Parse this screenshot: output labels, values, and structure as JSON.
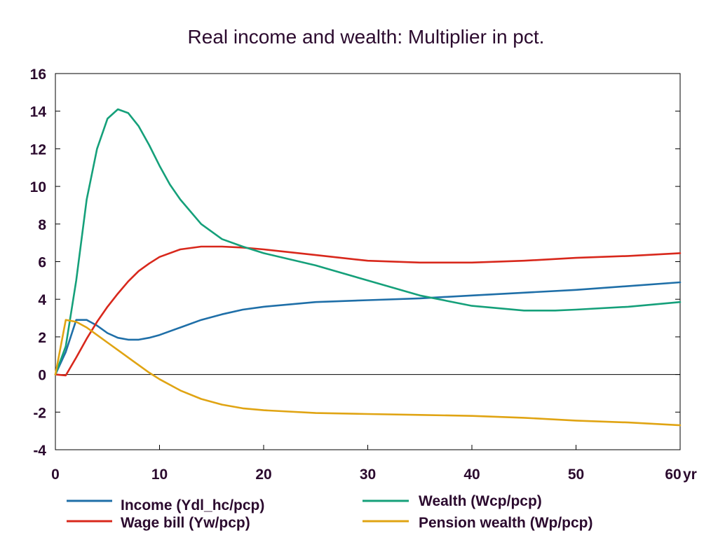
{
  "chart_data": {
    "type": "line",
    "title": "Real income and wealth: Multiplier in pct.",
    "xlabel": "",
    "ylabel": "",
    "x_unit_label": "yr",
    "xlim": [
      0,
      60
    ],
    "ylim": [
      -4,
      16
    ],
    "x_ticks": [
      0,
      10,
      20,
      30,
      40,
      50,
      60
    ],
    "y_ticks": [
      -4,
      -2,
      0,
      2,
      4,
      6,
      8,
      10,
      12,
      14,
      16
    ],
    "grid": false,
    "zero_line": true,
    "legend_position": "bottom",
    "series": [
      {
        "name": "Income (Ydl_hc/pcp)",
        "color": "#1f6fa8",
        "x": [
          0,
          1,
          2,
          3,
          4,
          5,
          6,
          7,
          8,
          9,
          10,
          12,
          14,
          16,
          18,
          20,
          25,
          30,
          35,
          40,
          45,
          50,
          55,
          60
        ],
        "y": [
          0,
          1.2,
          2.9,
          2.9,
          2.6,
          2.2,
          1.95,
          1.85,
          1.85,
          1.95,
          2.1,
          2.5,
          2.9,
          3.2,
          3.45,
          3.6,
          3.85,
          3.95,
          4.05,
          4.2,
          4.35,
          4.5,
          4.7,
          4.9
        ]
      },
      {
        "name": "Wage bill (Yw/pcp)",
        "color": "#d8281c",
        "x": [
          0,
          1,
          2,
          3,
          4,
          5,
          6,
          7,
          8,
          9,
          10,
          12,
          14,
          16,
          18,
          20,
          25,
          30,
          35,
          40,
          45,
          50,
          55,
          60
        ],
        "y": [
          0,
          -0.05,
          0.9,
          1.9,
          2.8,
          3.6,
          4.3,
          4.95,
          5.5,
          5.9,
          6.25,
          6.65,
          6.8,
          6.8,
          6.75,
          6.65,
          6.35,
          6.05,
          5.95,
          5.95,
          6.05,
          6.2,
          6.3,
          6.45
        ]
      },
      {
        "name": "Wealth (Wcp/pcp)",
        "color": "#15a07a",
        "x": [
          0,
          1,
          2,
          3,
          4,
          5,
          6,
          7,
          8,
          9,
          10,
          11,
          12,
          14,
          16,
          18,
          20,
          25,
          30,
          35,
          40,
          45,
          48,
          50,
          55,
          60
        ],
        "y": [
          0,
          1.5,
          5,
          9.3,
          12,
          13.6,
          14.1,
          13.9,
          13.2,
          12.2,
          11.1,
          10.1,
          9.3,
          8.0,
          7.2,
          6.8,
          6.45,
          5.8,
          5.0,
          4.2,
          3.65,
          3.4,
          3.4,
          3.45,
          3.6,
          3.85
        ]
      },
      {
        "name": "Pension wealth (Wp/pcp)",
        "color": "#e0a413",
        "x": [
          0,
          1,
          2,
          3,
          4,
          5,
          6,
          7,
          8,
          9,
          10,
          12,
          14,
          16,
          18,
          20,
          25,
          30,
          35,
          40,
          45,
          50,
          55,
          60
        ],
        "y": [
          0,
          2.9,
          2.8,
          2.5,
          2.1,
          1.7,
          1.3,
          0.9,
          0.5,
          0.1,
          -0.25,
          -0.85,
          -1.3,
          -1.6,
          -1.8,
          -1.9,
          -2.05,
          -2.1,
          -2.15,
          -2.2,
          -2.3,
          -2.45,
          -2.55,
          -2.7
        ]
      }
    ]
  }
}
